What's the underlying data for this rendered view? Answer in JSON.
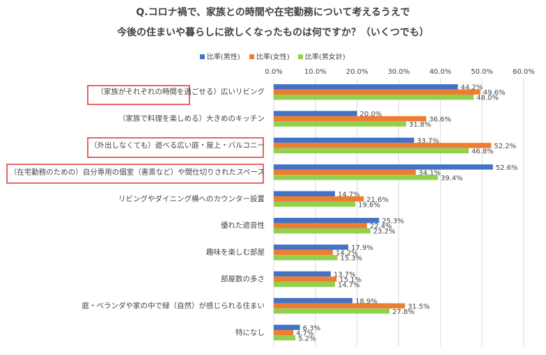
{
  "chart_data": {
    "type": "bar",
    "orientation": "horizontal",
    "title": "Q.コロナ禍で、家族との時間や在宅勤務について考えるうえで",
    "subtitle": "今後の住まいや暮らしに欲しくなったものは何ですか？（いくつでも）",
    "categories": [
      "（家族がそれぞれの時間を過ごせる）広いリビング",
      "（家族で料理を楽しめる）大きめのキッチン",
      "（外出しなくても）遊べる広い庭・屋上・バルコニー",
      "（在宅勤務のための）自分専用の個室（書斎など）や間仕切りされたスペース",
      "リビングやダイニング横へのカウンター設置",
      "優れた遮音性",
      "趣味を楽しむ部屋",
      "部屋数の多さ",
      "庭・ベランダや家の中で緑（自然）が感じられる住まい",
      "特になし"
    ],
    "series": [
      {
        "name": "比率(男性)",
        "color": "#4472c4",
        "values": [
          44.2,
          20.0,
          33.7,
          52.6,
          14.7,
          25.3,
          17.9,
          13.7,
          18.9,
          6.3
        ],
        "value_labels": [
          "44.2%",
          "20.0%",
          "33.7%",
          "52.6%",
          "14.7%",
          "25.3%",
          "17.9%",
          "13.7%",
          "18.9%",
          "6.3%"
        ]
      },
      {
        "name": "比率(女性)",
        "color": "#ed7d31",
        "values": [
          49.6,
          36.6,
          52.2,
          34.1,
          21.6,
          22.4,
          14.2,
          15.1,
          31.5,
          4.7
        ],
        "value_labels": [
          "49.6%",
          "36.6%",
          "52.2%",
          "34.1%",
          "21.6%",
          "22.4%",
          "14.2%",
          "15.1%",
          "31.5%",
          "4.7%"
        ]
      },
      {
        "name": "比率(男女計)",
        "color": "#92d050",
        "values": [
          48.0,
          31.8,
          46.8,
          39.4,
          19.6,
          23.2,
          15.3,
          14.7,
          27.8,
          5.2
        ],
        "value_labels": [
          "48.0%",
          "31.8%",
          "46.8%",
          "39.4%",
          "19.6%",
          "23.2%",
          "15.3%",
          "14.7%",
          "27.8%",
          "5.2%"
        ]
      }
    ],
    "xlim": [
      0,
      60
    ],
    "xticks": [
      {
        "value": 0,
        "label": "0.0%"
      },
      {
        "value": 10,
        "label": "10.0%"
      },
      {
        "value": 20,
        "label": "20.0%"
      },
      {
        "value": 30,
        "label": "30.0%"
      },
      {
        "value": 40,
        "label": "40.0%"
      },
      {
        "value": 50,
        "label": "50.0%"
      },
      {
        "value": 60,
        "label": "60.0%"
      }
    ],
    "grid": true
  }
}
